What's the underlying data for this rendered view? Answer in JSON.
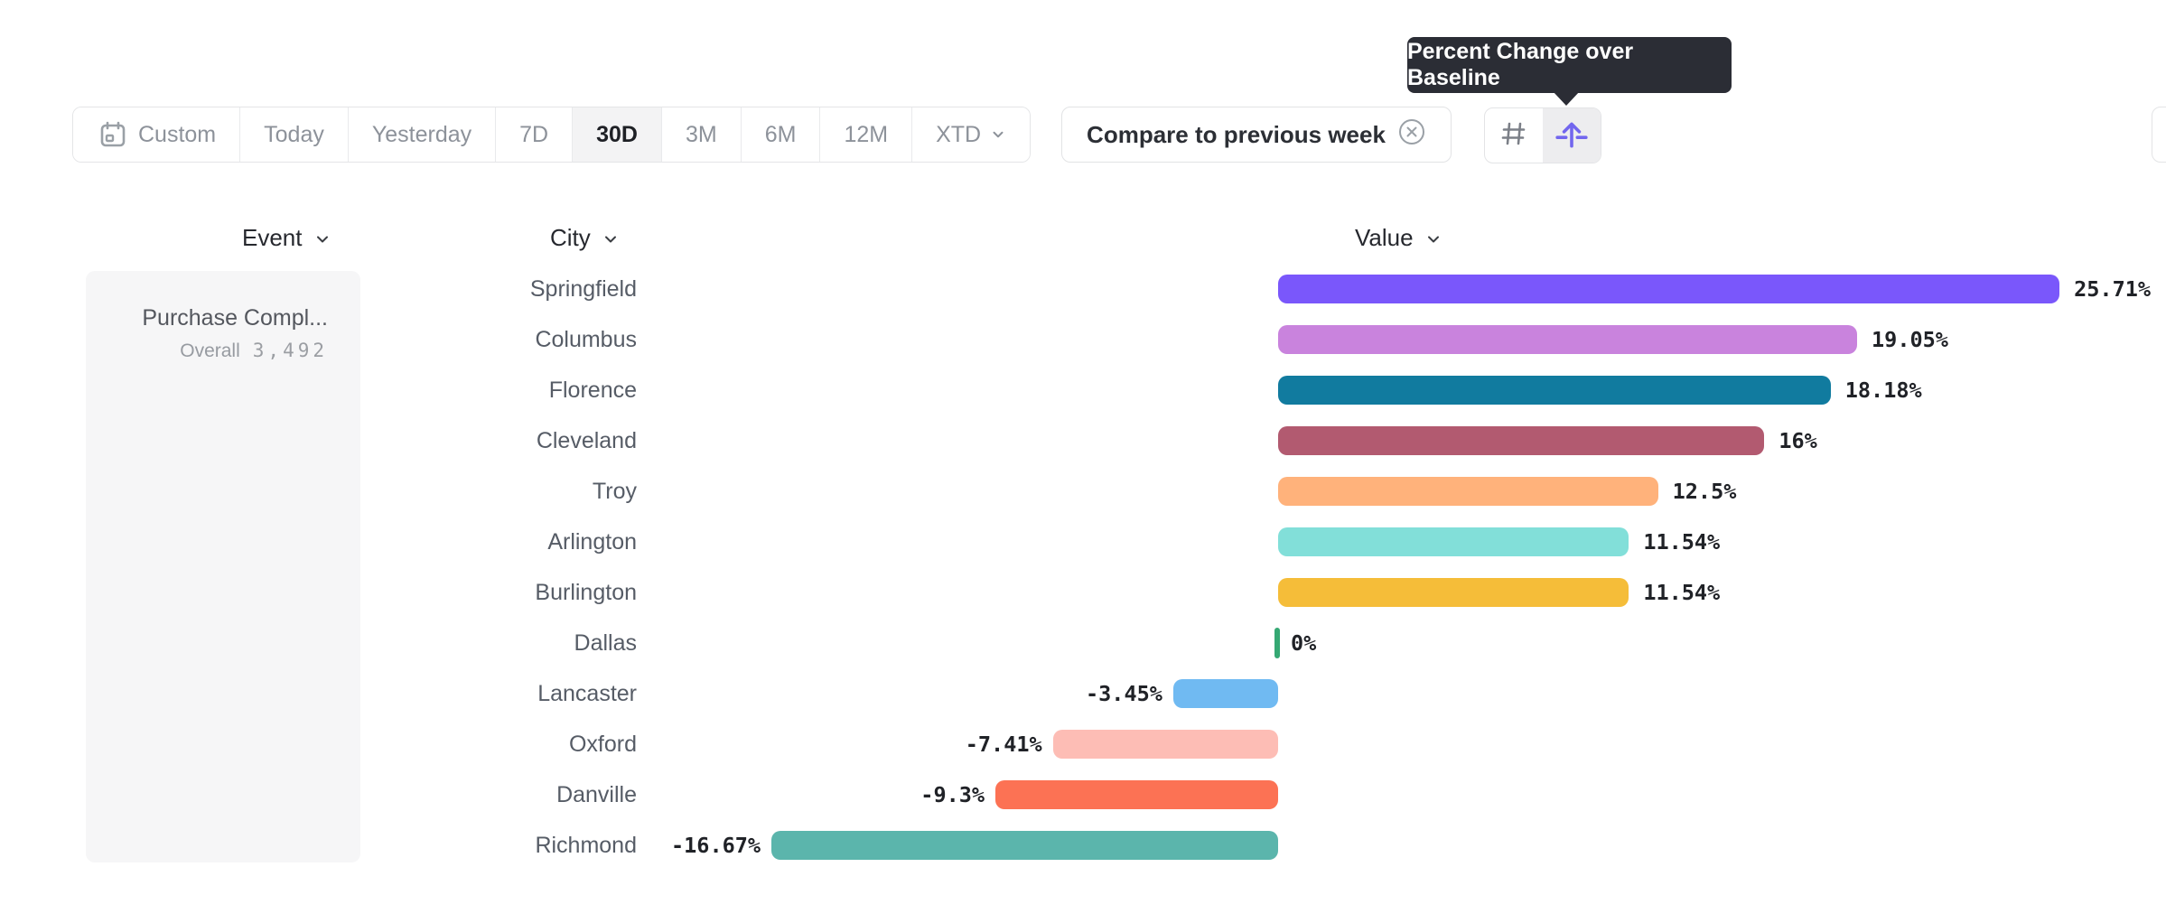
{
  "toolbar": {
    "date_ranges": [
      {
        "label": "Custom",
        "icon": "calendar",
        "selected": false
      },
      {
        "label": "Today",
        "selected": false
      },
      {
        "label": "Yesterday",
        "selected": false
      },
      {
        "label": "7D",
        "selected": false
      },
      {
        "label": "30D",
        "selected": true
      },
      {
        "label": "3M",
        "selected": false
      },
      {
        "label": "6M",
        "selected": false
      },
      {
        "label": "12M",
        "selected": false
      },
      {
        "label": "XTD",
        "chevron": true,
        "selected": false
      }
    ],
    "compare_label": "Compare to previous week",
    "view_toggle": [
      {
        "icon": "hash-grid",
        "selected": false
      },
      {
        "icon": "percent-change-baseline",
        "selected": true
      }
    ]
  },
  "tooltip": {
    "text": "Percent Change over Baseline"
  },
  "columns": {
    "event": "Event",
    "city": "City",
    "value": "Value"
  },
  "event_panel": {
    "event_name": "Purchase Compl...",
    "overall_label": "Overall",
    "overall_value": "3,492"
  },
  "colors": {
    "accent_purple": "#7266ee",
    "tooltip_bg": "#2b2d35",
    "zero_tick_green": "#35a873"
  },
  "chart_data": {
    "type": "bar",
    "orientation": "horizontal",
    "title": "Percent Change over Baseline",
    "event": "Purchase Compl...",
    "overall": 3492,
    "baseline": 0,
    "xlim": [
      -16.67,
      25.71
    ],
    "categories": [
      "Springfield",
      "Columbus",
      "Florence",
      "Cleveland",
      "Troy",
      "Arlington",
      "Burlington",
      "Dallas",
      "Lancaster",
      "Oxford",
      "Danville",
      "Richmond"
    ],
    "values": [
      25.71,
      19.05,
      18.18,
      16,
      12.5,
      11.54,
      11.54,
      0,
      -3.45,
      -7.41,
      -9.3,
      -16.67
    ],
    "labels": [
      "25.71%",
      "19.05%",
      "18.18%",
      "16%",
      "12.5%",
      "11.54%",
      "11.54%",
      "0%",
      "-3.45%",
      "-7.41%",
      "-9.3%",
      "-16.67%"
    ],
    "bar_colors": [
      "#7a57fb",
      "#c983dd",
      "#117b9f",
      "#b25a70",
      "#ffb27b",
      "#82dfd9",
      "#f5bd39",
      "#35a873",
      "#70baf2",
      "#fdbdb5",
      "#fc7254",
      "#5bb5ac"
    ]
  }
}
